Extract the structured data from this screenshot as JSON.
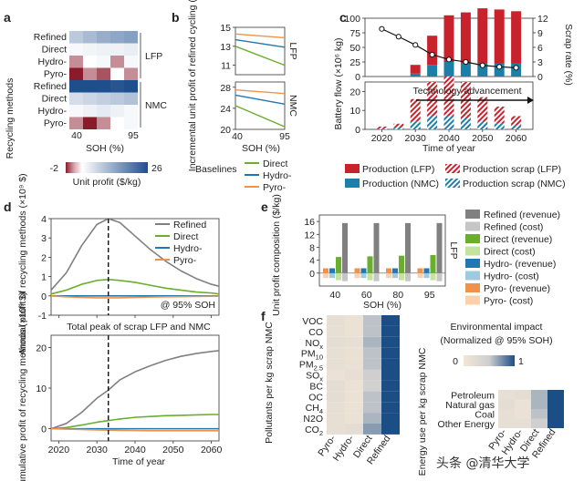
{
  "panels": {
    "a": "a",
    "b": "b",
    "c": "c",
    "d": "d",
    "e": "e",
    "f": "f"
  },
  "colors": {
    "refined": "#808080",
    "refined_cost": "#c6c6c6",
    "direct": "#6aae2e",
    "direct_cost": "#c6e39e",
    "hydro": "#1f78b4",
    "hydro_cost": "#9ecae1",
    "pyro": "#f0924a",
    "pyro_cost": "#fbd0aa",
    "lfp": "#c8232c",
    "nmc": "#1b7fa8"
  },
  "chart_data": [
    {
      "id": "a",
      "type": "heatmap",
      "ylabel": "Recycling methods",
      "xlabel": "SOH (%)",
      "xticks": [
        "40",
        "95"
      ],
      "rows": [
        "Refined",
        "Direct",
        "Hydro-",
        "Pyro-",
        "Refined",
        "Direct",
        "Hydro-",
        "Pyro-"
      ],
      "groups": [
        {
          "name": "LFP",
          "rows": [
            0,
            3
          ]
        },
        {
          "name": "NMC",
          "rows": [
            4,
            7
          ]
        }
      ],
      "cols": 5,
      "values": [
        [
          8,
          10,
          12,
          13,
          14
        ],
        [
          1,
          1.5,
          2,
          2,
          2.5
        ],
        [
          -1,
          0,
          1,
          -1,
          1
        ],
        [
          -2,
          -1,
          -1.5,
          0,
          -1
        ],
        [
          26,
          26,
          26,
          25,
          26
        ],
        [
          5,
          6,
          7,
          8,
          9
        ],
        [
          1,
          2,
          3,
          2,
          1
        ],
        [
          -1,
          -2,
          -1,
          0,
          1
        ]
      ],
      "colorbar": {
        "min_label": "-2",
        "max_label": "26",
        "label": "Unit profit ($/kg)",
        "min": -2,
        "max": 26
      }
    },
    {
      "id": "b",
      "type": "line",
      "ylabel": "Incremental unit profit of refined cycling ($/kg)",
      "xlabel": "SOH (%)",
      "xticks": [
        "40",
        "95"
      ],
      "legend_title": "Baselines",
      "series_names": [
        "Direct",
        "Hydro-",
        "Pyro-"
      ],
      "subplots": [
        {
          "group": "LFP",
          "yticks": [
            "11",
            "13",
            "15"
          ],
          "ylim": [
            10,
            15
          ],
          "series": [
            {
              "name": "Direct",
              "values": [
                13.0,
                11.0
              ]
            },
            {
              "name": "Hydro-",
              "values": [
                13.7,
                12.9
              ]
            },
            {
              "name": "Pyro-",
              "values": [
                14.3,
                13.9
              ]
            }
          ]
        },
        {
          "group": "NMC",
          "yticks": [
            "20",
            "24",
            "28"
          ],
          "ylim": [
            20,
            29
          ],
          "series": [
            {
              "name": "Direct",
              "values": [
                24.5,
                20.5
              ]
            },
            {
              "name": "Hydro-",
              "values": [
                26.5,
                24.8
              ]
            },
            {
              "name": "Pyro-",
              "values": [
                27.5,
                26.8
              ]
            }
          ]
        }
      ]
    },
    {
      "id": "c",
      "type": "bar",
      "ylabel": "Battery flow (×10⁶ kg)",
      "y2label": "Scrap rate (%)",
      "xlabel": "Time of year",
      "xticks": [
        "2020",
        "2030",
        "2040",
        "2050",
        "2060"
      ],
      "years": [
        2020,
        2025,
        2030,
        2035,
        2040,
        2045,
        2050,
        2055,
        2060
      ],
      "upper": {
        "yticks": [
          "0",
          "25",
          "50",
          "75",
          "100"
        ],
        "ylim": [
          0,
          100
        ],
        "y2ticks": [
          "0",
          "3",
          "6",
          "9",
          "12"
        ],
        "y2lim": [
          0,
          12
        ],
        "series": [
          {
            "name": "Production (LFP)",
            "values": [
              0,
              0,
              15,
              50,
              80,
              88,
              95,
              93,
              90
            ]
          },
          {
            "name": "Production (NMC)",
            "values": [
              0,
              0,
              5,
              20,
              25,
              22,
              22,
              22,
              22
            ]
          }
        ],
        "scrap_rate": [
          9.8,
          8.2,
          6.5,
          4.5,
          3.5,
          3,
          2.3,
          2,
          1.8
        ]
      },
      "lower": {
        "yticks": [
          "0",
          "10",
          "20"
        ],
        "ylim": [
          0,
          25
        ],
        "series": [
          {
            "name": "Production scrap (LFP)",
            "values": [
              1,
              2,
              12,
              18,
              21,
              19,
              13,
              9,
              5
            ]
          },
          {
            "name": "Production scrap (NMC)",
            "values": [
              0.5,
              1,
              4,
              7,
              7,
              6,
              4,
              3,
              2
            ]
          }
        ]
      },
      "annotation": "Technology advancement",
      "legend": [
        "Production (LFP)",
        "Production scrap (LFP)",
        "Production (NMC)",
        "Production scrap (NMC)"
      ]
    },
    {
      "id": "d_top",
      "type": "line",
      "ylabel": "Annual profit of recycling methods (×10⁹ $)",
      "yticks": [
        "-1",
        "0",
        "1",
        "2",
        "3",
        "4"
      ],
      "ylim": [
        -1,
        4
      ],
      "xlim": [
        2018,
        2062
      ],
      "x": [
        2018,
        2022,
        2026,
        2030,
        2033,
        2036,
        2040,
        2044,
        2048,
        2052,
        2056,
        2060,
        2062
      ],
      "series": [
        {
          "name": "Refined",
          "values": [
            0.3,
            1.2,
            2.6,
            3.7,
            4.0,
            3.8,
            3.1,
            2.4,
            1.8,
            1.3,
            0.9,
            0.6,
            0.5
          ]
        },
        {
          "name": "Direct",
          "values": [
            0.1,
            0.3,
            0.6,
            0.8,
            0.85,
            0.8,
            0.7,
            0.55,
            0.4,
            0.3,
            0.2,
            0.15,
            0.1
          ]
        },
        {
          "name": "Hydro-",
          "values": [
            0,
            0,
            0,
            0,
            0,
            0,
            0,
            0,
            0,
            0,
            0,
            0,
            0
          ]
        },
        {
          "name": "Pyro-",
          "values": [
            0,
            -0.05,
            -0.08,
            -0.1,
            -0.1,
            -0.1,
            -0.08,
            -0.06,
            -0.05,
            -0.04,
            -0.03,
            -0.02,
            -0.02
          ]
        }
      ],
      "vline_x": 2033,
      "annotation": "@ 95% SOH",
      "caption": "Total peak of scrap LFP and NMC"
    },
    {
      "id": "d_bottom",
      "type": "line",
      "ylabel": "Cumulative profit of recycling methods (×10⁹ $)",
      "xlabel": "Time of year",
      "xticks": [
        "2020",
        "2030",
        "2040",
        "2050",
        "2060"
      ],
      "yticks": [
        "0",
        "10",
        "20"
      ],
      "ylim": [
        -3,
        23
      ],
      "xlim": [
        2018,
        2062
      ],
      "x": [
        2018,
        2022,
        2026,
        2030,
        2033,
        2036,
        2040,
        2044,
        2048,
        2052,
        2056,
        2060,
        2062
      ],
      "series": [
        {
          "name": "Refined",
          "values": [
            0,
            1.3,
            4,
            7.5,
            9.5,
            12,
            14,
            15.5,
            16.8,
            17.8,
            18.5,
            19,
            19.2
          ]
        },
        {
          "name": "Direct",
          "values": [
            0,
            0.3,
            0.9,
            1.6,
            2,
            2.4,
            2.8,
            3,
            3.2,
            3.3,
            3.4,
            3.5,
            3.5
          ]
        },
        {
          "name": "Hydro-",
          "values": [
            0,
            0,
            0,
            0,
            0,
            0,
            0,
            0,
            0,
            0,
            0,
            0,
            0
          ]
        },
        {
          "name": "Pyro-",
          "values": [
            0,
            -0.1,
            -0.2,
            -0.3,
            -0.35,
            -0.4,
            -0.45,
            -0.5,
            -0.5,
            -0.5,
            -0.5,
            -0.5,
            -0.5
          ]
        }
      ],
      "vline_x": 2033
    },
    {
      "id": "e",
      "type": "bar",
      "ylabel": "Unit profit composition ($/kg)",
      "xlabel": "SOH (%)",
      "group": "LFP",
      "categories": [
        "40",
        "60",
        "80",
        "95"
      ],
      "yticks": [
        "0",
        "4",
        "8",
        "12",
        "16"
      ],
      "ylim": [
        -4,
        18
      ],
      "series": [
        {
          "name": "Pyro- (revenue)",
          "values": [
            1.5,
            1.5,
            1.5,
            1.5
          ]
        },
        {
          "name": "Pyro- (cost)",
          "values": [
            -1.5,
            -1.5,
            -1.5,
            -1.5
          ]
        },
        {
          "name": "Hydro- (revenue)",
          "values": [
            1.5,
            1.5,
            1.5,
            1.5
          ]
        },
        {
          "name": "Hydro- (cost)",
          "values": [
            -1.5,
            -1.5,
            -1.5,
            -1.5
          ]
        },
        {
          "name": "Direct (revenue)",
          "values": [
            5,
            5.2,
            5.4,
            5.6
          ]
        },
        {
          "name": "Direct (cost)",
          "values": [
            -2.2,
            -2.2,
            -2.2,
            -2.2
          ]
        },
        {
          "name": "Refined (revenue)",
          "values": [
            15.5,
            15.5,
            15.5,
            15.5
          ]
        },
        {
          "name": "Refined (cost)",
          "values": [
            -2.5,
            -2.5,
            -2.5,
            -2.5
          ]
        }
      ],
      "legend": [
        "Refined (revenue)",
        "Refined (cost)",
        "Direct (revenue)",
        "Direct (cost)",
        "Hydro- (revenue)",
        "Hydro- (cost)",
        "Pyro- (revenue)",
        "Pyro- (cost)"
      ]
    },
    {
      "id": "f_left",
      "type": "heatmap",
      "ylabel": "Pollutants per kg scrap NMC",
      "rows": [
        "VOC",
        "CO",
        "NOx",
        "PM10",
        "PM2.5",
        "SOx",
        "BC",
        "OC",
        "CH4",
        "N2O",
        "CO2"
      ],
      "cols": [
        "Pyro-",
        "Hydro-",
        "Direct",
        "Refined"
      ],
      "values": [
        [
          0.15,
          0.1,
          0.55,
          1
        ],
        [
          0.15,
          0.1,
          0.55,
          1
        ],
        [
          0.2,
          0.15,
          0.6,
          1
        ],
        [
          0.15,
          0.12,
          0.55,
          1
        ],
        [
          0.15,
          0.12,
          0.55,
          1
        ],
        [
          0.1,
          0.15,
          0.5,
          1
        ],
        [
          0.2,
          0.1,
          0.45,
          1
        ],
        [
          0.2,
          0.1,
          0.55,
          1
        ],
        [
          0.15,
          0.1,
          0.55,
          1
        ],
        [
          0.15,
          0.1,
          0.6,
          1
        ],
        [
          0.15,
          0.2,
          0.7,
          1
        ]
      ]
    },
    {
      "id": "f_right",
      "type": "heatmap",
      "ylabel": "Energy use per kg scrap NMC",
      "rows": [
        "Petroleum",
        "Natural gas",
        "Coal",
        "Other Energy"
      ],
      "cols": [
        "Pyro-",
        "Hydro-",
        "Direct",
        "Refined"
      ],
      "values": [
        [
          0.15,
          0.2,
          0.6,
          1
        ],
        [
          0.2,
          0.1,
          0.6,
          1
        ],
        [
          0.15,
          0.1,
          0.55,
          1
        ],
        [
          0.15,
          0.15,
          0.5,
          1
        ]
      ],
      "colorbar": {
        "title": "Environmental impact",
        "subtitle": "(Normalized @ 95% SOH)",
        "min_label": "0",
        "max_label": "1"
      }
    }
  ],
  "watermark": "头条 @清华大学"
}
